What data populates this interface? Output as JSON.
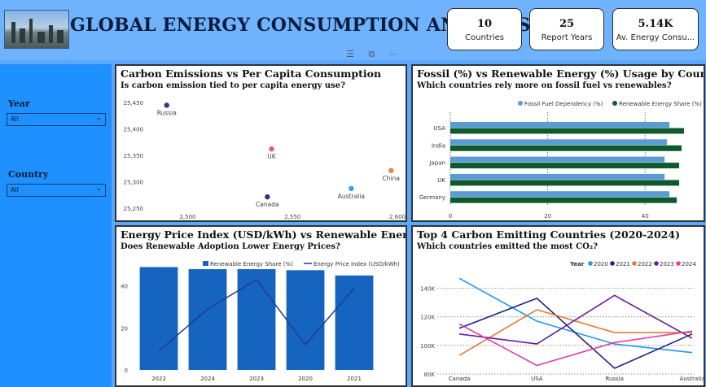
{
  "header": {
    "title": "GLOBAL ENERGY CONSUMPTION ANALYSIS",
    "kpis": [
      {
        "value": "10",
        "label": "Countries"
      },
      {
        "value": "25",
        "label": "Report Years"
      },
      {
        "value": "5.14K",
        "label": "Av. Energy Consu..."
      }
    ],
    "toolbar_icons": [
      "filter-icon",
      "focus-mode-icon",
      "more-options-icon"
    ]
  },
  "sidebar": {
    "year_label": "Year",
    "year_value": "All",
    "country_label": "Country",
    "country_value": "All"
  },
  "panels": {
    "scatter": {
      "title": "Carbon Emissions vs Per Capita Consumption",
      "subtitle": "Is carbon emission tied to per capita energy use?"
    },
    "fossil": {
      "title": "Fossil (%) vs Renewable Energy (%) Usage by Country",
      "subtitle": "Which countries rely more on fossil fuel vs renewables?"
    },
    "price": {
      "title": "Energy Price Index (USD/kWh) vs Renewable Energy Share",
      "subtitle": "Does Renewable Adoption Lower Energy Prices?"
    },
    "top4": {
      "title": "Top 4 Carbon Emitting Countries (2020-2024)",
      "subtitle": "Which countries emitted the most CO₂?"
    }
  },
  "chart_data": [
    {
      "type": "scatter",
      "x_ticks": [
        "2,500",
        "2,550",
        "2,600"
      ],
      "y_ticks": [
        "25,450",
        "25,400",
        "25,350",
        "25,300",
        "25,250"
      ],
      "xlim": [
        2480,
        2600
      ],
      "ylim": [
        25245,
        25455
      ],
      "points": [
        {
          "name": "Russia",
          "x": 2490,
          "y": 25445,
          "color": "#4b2c83"
        },
        {
          "name": "UK",
          "x": 2540,
          "y": 25362,
          "color": "#e84fa8"
        },
        {
          "name": "China",
          "x": 2597,
          "y": 25321,
          "color": "#e8824f"
        },
        {
          "name": "Australia",
          "x": 2578,
          "y": 25287,
          "color": "#3d9bf0"
        },
        {
          "name": "Canada",
          "x": 2538,
          "y": 25271,
          "color": "#26348a"
        }
      ]
    },
    {
      "type": "bar",
      "orientation": "horizontal",
      "categories": [
        "USA",
        "India",
        "Japan",
        "UK",
        "Germany"
      ],
      "series": [
        {
          "name": "Fossil Fuel Dependency (%)",
          "color": "#5b9bd5",
          "values": [
            45,
            44.5,
            44,
            44,
            45
          ]
        },
        {
          "name": "Renewable Energy Share (%)",
          "color": "#0e5a2e",
          "values": [
            48,
            47.5,
            47,
            47,
            46.5
          ]
        }
      ],
      "x_ticks": [
        "0",
        "20",
        "40"
      ],
      "xlim": [
        0,
        50
      ],
      "legend": "top-right",
      "grid": true
    },
    {
      "type": "bar",
      "categories": [
        "2022",
        "2024",
        "2023",
        "2020",
        "2021"
      ],
      "series": [
        {
          "name": "Renewable Energy Share (%)",
          "color": "#1565c0",
          "values": [
            49,
            48,
            48,
            47.5,
            45
          ]
        },
        {
          "name": "Energy Price Index (USD/kWh)",
          "type": "line",
          "color": "#233a8f",
          "values": [
            9,
            29,
            43,
            12,
            39
          ]
        }
      ],
      "y_ticks": [
        "0",
        "20",
        "40"
      ],
      "ylim": [
        0,
        55
      ],
      "legend": "top"
    },
    {
      "type": "line",
      "categories": [
        "Canada",
        "USA",
        "Russia",
        "Australia"
      ],
      "legend_title": "Year",
      "series": [
        {
          "name": "2020",
          "color": "#2196f3",
          "values": [
            147,
            117,
            101,
            95
          ]
        },
        {
          "name": "2021",
          "color": "#1a237e",
          "values": [
            112,
            133,
            84,
            108
          ]
        },
        {
          "name": "2022",
          "color": "#e07b39",
          "values": [
            93,
            125,
            109,
            109
          ]
        },
        {
          "name": "2023",
          "color": "#6a1b9a",
          "values": [
            108,
            101,
            135,
            105
          ]
        },
        {
          "name": "2024",
          "color": "#e040a0",
          "values": [
            115,
            86,
            102,
            110
          ]
        }
      ],
      "y_ticks": [
        "140K",
        "120K",
        "100K",
        "80K"
      ],
      "ylim": [
        80,
        150
      ],
      "legend": "top-right"
    }
  ]
}
